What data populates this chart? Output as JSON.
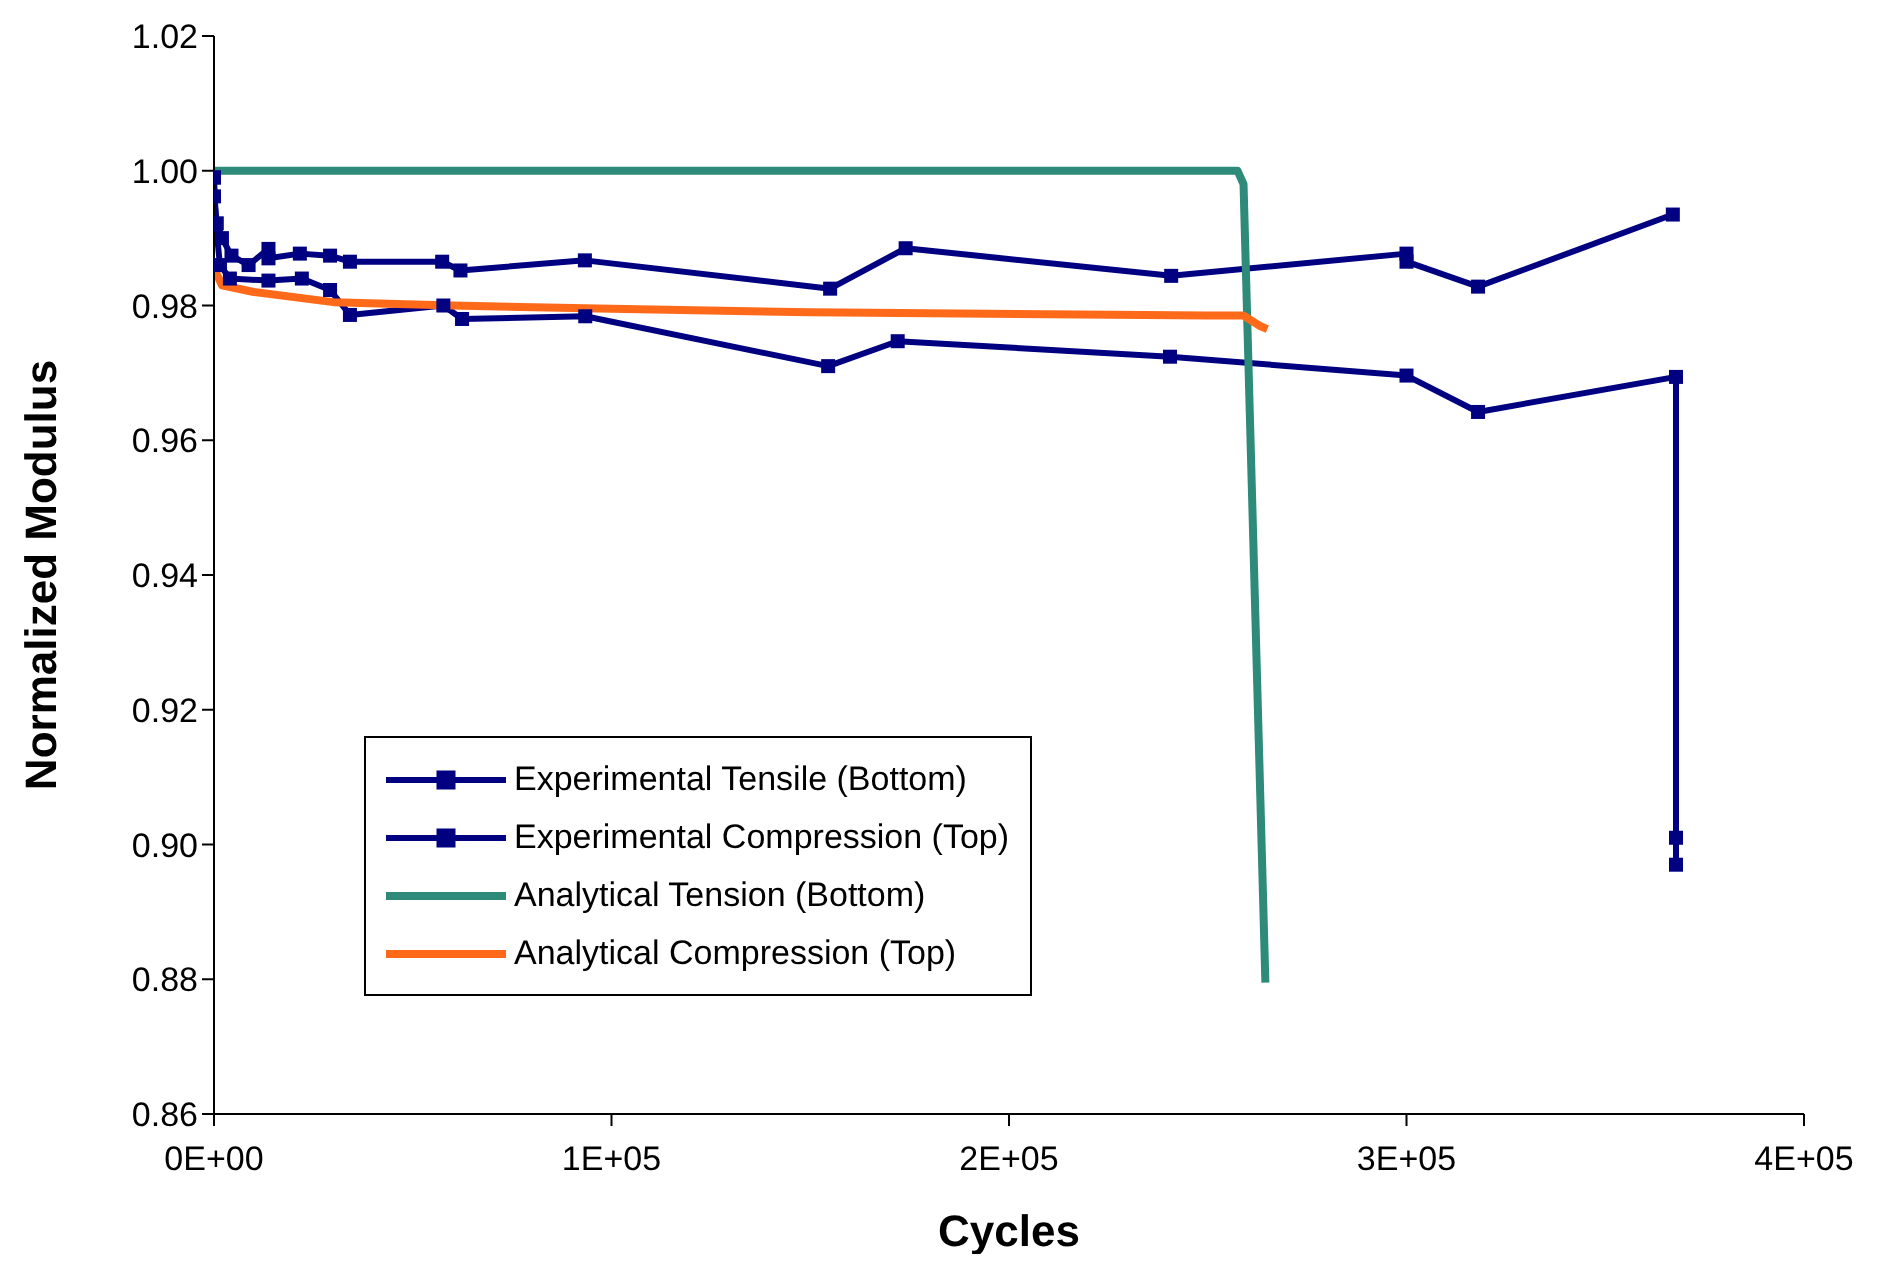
{
  "chart_data": {
    "type": "line",
    "xlabel": "Cycles",
    "ylabel": "Normalized Modulus",
    "xlim": [
      0,
      400000
    ],
    "xticks": [
      {
        "value": 0,
        "label": "0E+00"
      },
      {
        "value": 100000,
        "label": "1E+05"
      },
      {
        "value": 200000,
        "label": "2E+05"
      },
      {
        "value": 300000,
        "label": "3E+05"
      },
      {
        "value": 400000,
        "label": "4E+05"
      }
    ],
    "ylim": [
      0.86,
      1.02
    ],
    "yticks": [
      0.86,
      0.88,
      {
        "value": 0.9,
        "label": "0.90"
      },
      0.92,
      0.94,
      0.96,
      0.98,
      {
        "value": 1,
        "label": "1.00"
      },
      1.02
    ],
    "grid": false,
    "legend": "bottom left",
    "line_style": "solid",
    "series": [
      {
        "name": "Experimental Tensile (Bottom)",
        "color": "#000080",
        "marker": "square",
        "x": [
          0,
          500,
          1500,
          4000,
          13700,
          22100,
          29200,
          34200,
          57700,
          62400,
          93400,
          154500,
          172000,
          240500,
          300000,
          318000,
          367800,
          367800,
          367800
        ],
        "values": [
          0.999,
          0.992,
          0.986,
          0.984,
          0.9837,
          0.984,
          0.9823,
          0.9786,
          0.98,
          0.978,
          0.9784,
          0.971,
          0.9747,
          0.9724,
          0.9696,
          0.9642,
          0.9694,
          0.901,
          0.897
        ]
      },
      {
        "name": "Experimental Compression (Top)",
        "color": "#000080",
        "marker": "square",
        "x": [
          0,
          0,
          700,
          2000,
          4400,
          8700,
          13700,
          13700,
          21600,
          29200,
          34200,
          57400,
          62000,
          93300,
          155000,
          174000,
          240800,
          300000,
          300000,
          318000,
          367000
        ],
        "values": [
          0.999,
          0.9962,
          0.9922,
          0.99,
          0.9874,
          0.986,
          0.9884,
          0.987,
          0.9877,
          0.9874,
          0.9865,
          0.9865,
          0.9852,
          0.9867,
          0.9825,
          0.9885,
          0.9844,
          0.9877,
          0.9865,
          0.9828,
          0.9935
        ]
      },
      {
        "name": "Analytical Tension (Bottom)",
        "color": "#2e8b7a",
        "marker": "none",
        "x": [
          0,
          257500,
          259000,
          264500
        ],
        "values": [
          1,
          1,
          0.998,
          0.8795
        ]
      },
      {
        "name": "Analytical Compression (Top)",
        "color": "#ff6a1a",
        "marker": "none",
        "x": [
          0,
          2000,
          10000,
          30000,
          60000,
          100000,
          150000,
          250000,
          259000,
          263000,
          265000
        ],
        "values": [
          0.9855,
          0.983,
          0.982,
          0.9805,
          0.98,
          0.9795,
          0.979,
          0.9785,
          0.9785,
          0.977,
          0.9765
        ]
      }
    ]
  }
}
